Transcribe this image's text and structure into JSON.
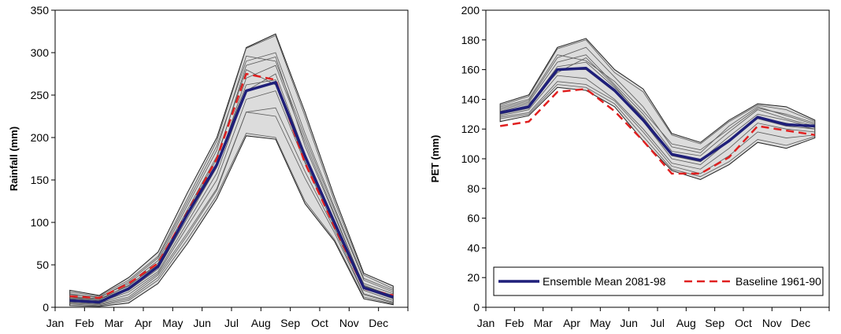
{
  "chart_data": [
    {
      "type": "line",
      "ylabel": "Rainfall (mm)",
      "xlabel": "",
      "categories": [
        "Jan",
        "Feb",
        "Mar",
        "Apr",
        "May",
        "Jun",
        "Jul",
        "Aug",
        "Sep",
        "Oct",
        "Nov",
        "Dec"
      ],
      "ylim": [
        0,
        350
      ],
      "yticks": [
        0,
        50,
        100,
        150,
        200,
        250,
        300,
        350
      ],
      "band_upper": [
        20,
        14,
        35,
        65,
        135,
        200,
        306,
        322,
        230,
        130,
        40,
        25
      ],
      "band_lower": [
        2,
        1,
        5,
        28,
        75,
        128,
        202,
        198,
        122,
        78,
        10,
        3
      ],
      "members": [
        [
          18,
          13,
          32,
          60,
          128,
          196,
          305,
          320,
          225,
          125,
          38,
          22
        ],
        [
          4,
          2,
          8,
          32,
          80,
          132,
          205,
          200,
          125,
          80,
          12,
          4
        ],
        [
          15,
          12,
          28,
          55,
          120,
          185,
          296,
          290,
          200,
          115,
          32,
          18
        ],
        [
          6,
          4,
          12,
          38,
          88,
          140,
          230,
          235,
          160,
          92,
          16,
          6
        ],
        [
          10,
          8,
          20,
          45,
          105,
          165,
          270,
          285,
          195,
          110,
          25,
          14
        ],
        [
          8,
          6,
          18,
          42,
          100,
          158,
          255,
          275,
          180,
          102,
          22,
          10
        ],
        [
          13,
          10,
          25,
          52,
          115,
          178,
          280,
          262,
          172,
          98,
          28,
          16
        ],
        [
          5,
          3,
          10,
          35,
          85,
          138,
          230,
          225,
          152,
          88,
          15,
          5
        ],
        [
          11,
          9,
          23,
          48,
          110,
          170,
          262,
          268,
          178,
          100,
          24,
          12
        ],
        [
          16,
          11,
          30,
          58,
          124,
          190,
          290,
          300,
          205,
          118,
          34,
          20
        ],
        [
          7,
          5,
          15,
          40,
          95,
          150,
          245,
          255,
          170,
          95,
          20,
          8
        ],
        [
          12,
          9,
          26,
          50,
          112,
          175,
          285,
          295,
          190,
          108,
          26,
          13
        ]
      ],
      "series": [
        {
          "name": "Ensemble Mean 2081-98",
          "color": "#1f1f7a",
          "style": "solid",
          "values": [
            8,
            6,
            22,
            48,
            110,
            168,
            255,
            265,
            178,
            100,
            23,
            12
          ]
        },
        {
          "name": "Baseline 1961-90",
          "color": "#e02020",
          "style": "dashed",
          "values": [
            13,
            11,
            28,
            52,
            112,
            175,
            275,
            268,
            170,
            95,
            22,
            14
          ]
        }
      ],
      "legend": ""
    },
    {
      "type": "line",
      "ylabel": "PET (mm)",
      "xlabel": "",
      "categories": [
        "Jan",
        "Feb",
        "Mar",
        "Apr",
        "May",
        "Jun",
        "Jul",
        "Aug",
        "Sep",
        "Oct",
        "Nov",
        "Dec"
      ],
      "ylim": [
        0,
        200
      ],
      "yticks": [
        0,
        20,
        40,
        60,
        80,
        100,
        120,
        140,
        160,
        180,
        200
      ],
      "band_upper": [
        137,
        143,
        175,
        181,
        160,
        147,
        117,
        111,
        126,
        137,
        135,
        126
      ],
      "band_lower": [
        125,
        129,
        148,
        146,
        135,
        112,
        92,
        86,
        96,
        111,
        107,
        114
      ],
      "members": [
        [
          136,
          142,
          174,
          180,
          158,
          145,
          116,
          110,
          125,
          136,
          133,
          125
        ],
        [
          127,
          130,
          150,
          148,
          137,
          115,
          93,
          88,
          98,
          113,
          109,
          115
        ],
        [
          133,
          138,
          165,
          170,
          150,
          130,
          105,
          102,
          118,
          133,
          127,
          122
        ],
        [
          130,
          134,
          160,
          160,
          145,
          125,
          100,
          96,
          112,
          128,
          124,
          120
        ],
        [
          129,
          133,
          156,
          154,
          140,
          120,
          97,
          93,
          107,
          124,
          120,
          118
        ],
        [
          135,
          140,
          170,
          166,
          152,
          132,
          110,
          106,
          120,
          134,
          130,
          124
        ],
        [
          131,
          136,
          162,
          165,
          148,
          128,
          103,
          99,
          115,
          130,
          126,
          121
        ],
        [
          128,
          131,
          152,
          150,
          139,
          118,
          95,
          90,
          102,
          118,
          114,
          116
        ],
        [
          134,
          139,
          168,
          175,
          155,
          135,
          108,
          104,
          122,
          135,
          129,
          123
        ],
        [
          132,
          137,
          158,
          168,
          149,
          127,
          102,
          98,
          113,
          127,
          122,
          120
        ]
      ],
      "series": [
        {
          "name": "Ensemble Mean 2081-98",
          "color": "#1f1f7a",
          "style": "solid",
          "values": [
            131,
            135,
            160,
            161,
            146,
            126,
            103,
            99,
            112,
            128,
            123,
            122
          ]
        },
        {
          "name": "Baseline 1961-90",
          "color": "#e02020",
          "style": "dashed",
          "values": [
            122,
            125,
            145,
            147,
            132,
            112,
            90,
            90,
            101,
            122,
            119,
            116
          ]
        }
      ],
      "legend": "bottom"
    }
  ]
}
